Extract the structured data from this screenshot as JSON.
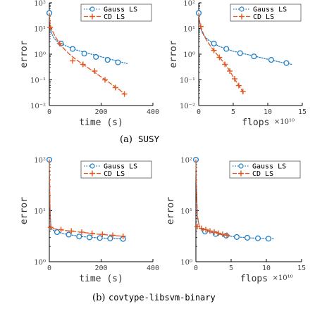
{
  "captions": {
    "a": {
      "label": "(a)",
      "dataset": "SUSY"
    },
    "b": {
      "label": "(b)",
      "dataset": "covtype-libsvm-binary"
    }
  },
  "colors": {
    "gauss": "#1f7fc6",
    "cd": "#e2561f",
    "axis": "#000000"
  },
  "chart_data": [
    {
      "type": "line",
      "panel": "a-left",
      "ylabel": "error",
      "xlabel": "time (s)",
      "x_multiplier": "",
      "xlim": [
        0,
        400
      ],
      "xticks": [
        0,
        200,
        400
      ],
      "xtick_labels": [
        "0",
        "200",
        "400"
      ],
      "ylim": [
        0.01,
        100
      ],
      "yscale": "log",
      "yticks": [
        0.01,
        0.1,
        1,
        10,
        100
      ],
      "ytick_labels": [
        "10⁻²",
        "10⁻¹",
        "10⁰",
        "10¹",
        "10²"
      ],
      "legend": "top-right",
      "series": [
        {
          "name": "Gauss LS",
          "style": "dotted",
          "marker": "circle",
          "color": "#1f7fc6",
          "x": [
            0,
            2,
            5,
            10,
            20,
            30,
            45,
            60,
            80,
            110,
            140,
            180,
            220,
            260,
            300
          ],
          "y": [
            40,
            20,
            10,
            6,
            4,
            3.2,
            2.6,
            2.2,
            1.8,
            1.4,
            1.15,
            0.9,
            0.7,
            0.55,
            0.43
          ],
          "marker_x": [
            0,
            45,
            90,
            135,
            180,
            225,
            265
          ],
          "marker_y": [
            40,
            2.6,
            1.6,
            1.05,
            0.78,
            0.6,
            0.48
          ]
        },
        {
          "name": "CD LS",
          "style": "dashed",
          "marker": "plus",
          "color": "#e2561f",
          "x": [
            0,
            3,
            8,
            15,
            25,
            40,
            60,
            80,
            100,
            130,
            160,
            200,
            240,
            270,
            290
          ],
          "y": [
            40,
            15,
            10,
            7,
            4.5,
            2.6,
            1.5,
            0.95,
            0.65,
            0.4,
            0.25,
            0.13,
            0.068,
            0.042,
            0.028
          ],
          "marker_x": [
            3,
            40,
            90,
            130,
            175,
            215,
            255,
            290
          ],
          "marker_y": [
            11,
            2.6,
            0.55,
            0.4,
            0.22,
            0.1,
            0.05,
            0.028
          ]
        }
      ]
    },
    {
      "type": "line",
      "panel": "a-right",
      "ylabel": "error",
      "xlabel": "flops",
      "x_multiplier": "×10¹⁰",
      "xlim": [
        0,
        15
      ],
      "xticks": [
        0,
        5,
        10,
        15
      ],
      "xtick_labels": [
        "0",
        "5",
        "10",
        "15"
      ],
      "ylim": [
        0.01,
        100
      ],
      "yscale": "log",
      "yticks": [
        0.01,
        0.1,
        1,
        10,
        100
      ],
      "ytick_labels": [
        "10⁻²",
        "10⁻¹",
        "10⁰",
        "10¹",
        "10²"
      ],
      "legend": "top-right",
      "series": [
        {
          "name": "Gauss LS",
          "style": "dotted",
          "marker": "circle",
          "color": "#1f7fc6",
          "x": [
            0,
            0.1,
            0.3,
            0.6,
            1,
            1.5,
            2.2,
            3,
            4,
            5,
            6.5,
            8,
            9.5,
            11,
            12.5,
            13.5
          ],
          "y": [
            40,
            20,
            10,
            6,
            4.5,
            3.4,
            2.6,
            2,
            1.6,
            1.3,
            1.05,
            0.85,
            0.68,
            0.55,
            0.45,
            0.4
          ],
          "marker_x": [
            0,
            2.2,
            4,
            6,
            8,
            10.5,
            12.7
          ],
          "marker_y": [
            40,
            2.6,
            1.6,
            1.1,
            0.82,
            0.6,
            0.45
          ]
        },
        {
          "name": "CD LS",
          "style": "dashed",
          "marker": "plus",
          "color": "#e2561f",
          "x": [
            0,
            0.1,
            0.3,
            0.6,
            1,
            1.5,
            2,
            2.5,
            3,
            3.5,
            4,
            4.5,
            5,
            5.5,
            6,
            6.5
          ],
          "y": [
            40,
            20,
            12,
            7,
            4,
            2.5,
            1.6,
            1.1,
            0.75,
            0.52,
            0.35,
            0.22,
            0.13,
            0.08,
            0.05,
            0.03
          ],
          "marker_x": [
            0.3,
            2.2,
            3,
            3.8,
            4.5,
            5.2,
            5.8,
            6.4
          ],
          "marker_y": [
            12,
            1.4,
            0.75,
            0.4,
            0.22,
            0.11,
            0.06,
            0.035
          ]
        }
      ]
    },
    {
      "type": "line",
      "panel": "b-left",
      "ylabel": "error",
      "xlabel": "time (s)",
      "x_multiplier": "",
      "xlim": [
        0,
        400
      ],
      "xticks": [
        0,
        200,
        400
      ],
      "xtick_labels": [
        "0",
        "200",
        "400"
      ],
      "ylim": [
        1,
        100
      ],
      "yscale": "log",
      "yticks": [
        1,
        10,
        100
      ],
      "ytick_labels": [
        "10⁰",
        "10¹",
        "10²"
      ],
      "legend": "top-right",
      "series": [
        {
          "name": "Gauss LS",
          "style": "dotted",
          "marker": "circle",
          "color": "#1f7fc6",
          "x": [
            0,
            1,
            3,
            6,
            10,
            20,
            35,
            50,
            75,
            100,
            125,
            150,
            175,
            200,
            225,
            250,
            290
          ],
          "y": [
            100,
            40,
            10,
            5,
            4.3,
            4,
            3.8,
            3.6,
            3.4,
            3.25,
            3.12,
            3.03,
            2.97,
            2.92,
            2.88,
            2.85,
            2.8
          ],
          "marker_x": [
            0,
            30,
            75,
            115,
            155,
            195,
            235,
            285
          ],
          "marker_y": [
            100,
            3.8,
            3.4,
            3.12,
            3.0,
            2.92,
            2.86,
            2.8
          ]
        },
        {
          "name": "CD LS",
          "style": "dashed",
          "marker": "plus",
          "color": "#e2561f",
          "x": [
            0,
            1,
            3,
            6,
            10,
            20,
            40,
            60,
            90,
            120,
            150,
            180,
            210,
            240,
            270,
            290
          ],
          "y": [
            100,
            40,
            8,
            5,
            4.6,
            4.4,
            4.25,
            4.1,
            3.95,
            3.8,
            3.65,
            3.5,
            3.4,
            3.3,
            3.2,
            3.15
          ],
          "marker_x": [
            5,
            45,
            85,
            125,
            165,
            205,
            245,
            285
          ],
          "marker_y": [
            4.7,
            4.25,
            4.0,
            3.8,
            3.6,
            3.45,
            3.3,
            3.15
          ]
        }
      ]
    },
    {
      "type": "line",
      "panel": "b-right",
      "ylabel": "error",
      "xlabel": "flops",
      "x_multiplier": "×10¹⁰",
      "xlim": [
        0,
        15
      ],
      "xticks": [
        0,
        5,
        10,
        15
      ],
      "xtick_labels": [
        "0",
        "5",
        "10",
        "15"
      ],
      "ylim": [
        1,
        100
      ],
      "yscale": "log",
      "yticks": [
        1,
        10,
        100
      ],
      "ytick_labels": [
        "10⁰",
        "10¹",
        "10²"
      ],
      "legend": "top-right",
      "series": [
        {
          "name": "Gauss LS",
          "style": "dotted",
          "marker": "circle",
          "color": "#1f7fc6",
          "x": [
            0,
            0.05,
            0.2,
            0.5,
            1,
            2,
            3,
            4,
            5,
            6,
            7,
            8,
            9,
            10,
            11
          ],
          "y": [
            100,
            40,
            8,
            4.6,
            4.2,
            3.8,
            3.5,
            3.3,
            3.15,
            3.05,
            2.98,
            2.92,
            2.88,
            2.85,
            2.82
          ],
          "marker_x": [
            0,
            1.3,
            2.8,
            4.3,
            5.8,
            7.3,
            8.8,
            10.3
          ],
          "marker_y": [
            100,
            3.9,
            3.5,
            3.25,
            3.05,
            2.95,
            2.88,
            2.83
          ]
        },
        {
          "name": "CD LS",
          "style": "dashed",
          "marker": "plus",
          "color": "#e2561f",
          "x": [
            0,
            0.05,
            0.2,
            0.5,
            1,
            1.5,
            2,
            2.5,
            3,
            3.5,
            4,
            4.5,
            5
          ],
          "y": [
            100,
            40,
            8,
            4.8,
            4.4,
            4.2,
            4.0,
            3.85,
            3.7,
            3.55,
            3.42,
            3.3,
            3.2
          ],
          "marker_x": [
            0.2,
            0.8,
            1.4,
            2.0,
            2.6,
            3.2,
            3.8,
            4.4
          ],
          "marker_y": [
            4.9,
            4.5,
            4.25,
            4.0,
            3.82,
            3.62,
            3.45,
            3.3
          ]
        }
      ]
    }
  ]
}
